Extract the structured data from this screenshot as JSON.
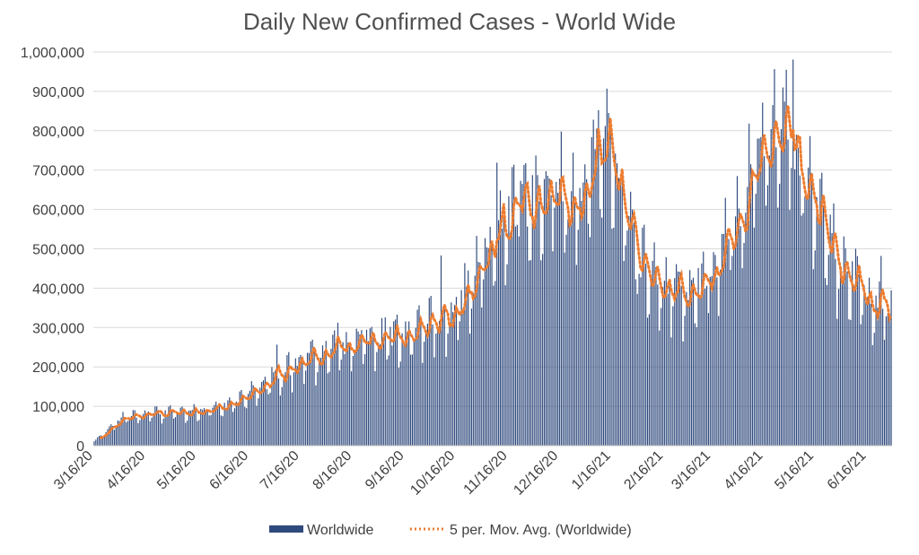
{
  "chart_data": {
    "type": "bar",
    "title": "Daily New Confirmed Cases - World Wide",
    "xlabel": "",
    "ylabel": "",
    "ylim": [
      0,
      1000000
    ],
    "yticks": [
      0,
      100000,
      200000,
      300000,
      400000,
      500000,
      600000,
      700000,
      800000,
      900000,
      1000000
    ],
    "ytick_labels": [
      "0",
      "100,000",
      "200,000",
      "300,000",
      "400,000",
      "500,000",
      "600,000",
      "700,000",
      "800,000",
      "900,000",
      "1,000,000"
    ],
    "xtick_labels": [
      "3/16/20",
      "4/16/20",
      "5/16/20",
      "6/16/20",
      "7/16/20",
      "8/16/20",
      "9/16/20",
      "10/16/20",
      "11/16/20",
      "12/16/20",
      "1/16/21",
      "2/16/21",
      "3/16/21",
      "4/16/21",
      "5/16/21",
      "6/16/21"
    ],
    "x_start": "3/16/20",
    "x_end": "6/30/21",
    "grid": true,
    "legend_position": "bottom",
    "colors": {
      "bars": "#2f4a7d",
      "moving_average": "#ed7d31"
    },
    "series": [
      {
        "name": "Worldwide",
        "type": "bar",
        "monthly_anchors": {
          "dates": [
            "3/16/20",
            "4/1/20",
            "4/16/20",
            "5/16/20",
            "6/1/20",
            "6/16/20",
            "7/16/20",
            "8/16/20",
            "9/16/20",
            "10/16/20",
            "11/1/20",
            "11/16/20",
            "12/16/20",
            "12/25/20",
            "1/8/21",
            "1/16/21",
            "2/1/21",
            "2/16/21",
            "3/1/21",
            "3/16/21",
            "4/1/21",
            "4/16/21",
            "4/28/21",
            "5/16/21",
            "6/1/21",
            "6/16/21",
            "6/30/21"
          ],
          "values": [
            10000,
            70000,
            82000,
            87000,
            100000,
            130000,
            215000,
            265000,
            280000,
            340000,
            480000,
            580000,
            680000,
            600000,
            780000,
            730000,
            480000,
            390000,
            380000,
            440000,
            600000,
            760000,
            850000,
            620000,
            450000,
            380000,
            360000
          ]
        }
      },
      {
        "name": "5 per. Mov. Avg. (Worldwide)",
        "type": "line",
        "style": "dotted"
      }
    ]
  }
}
